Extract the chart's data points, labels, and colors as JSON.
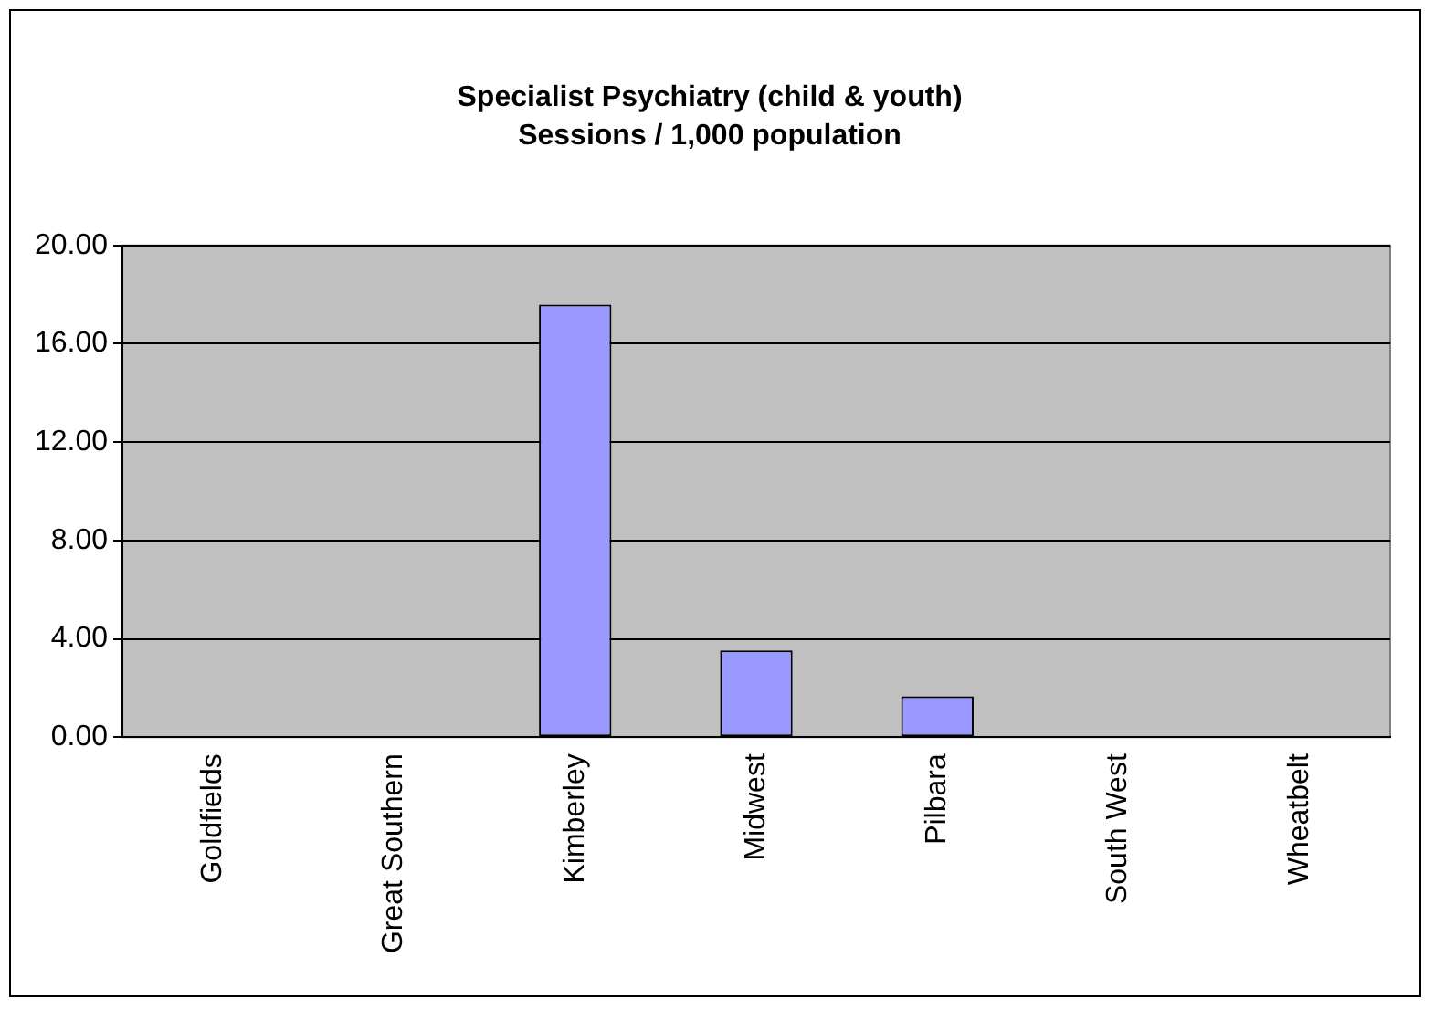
{
  "chart_data": {
    "type": "bar",
    "title": "Specialist Psychiatry (child & youth)",
    "subtitle": "Sessions / 1,000 population",
    "categories": [
      "Goldfields",
      "Great Southern",
      "Kimberley",
      "Midwest",
      "Pilbara",
      "South West",
      "Wheatbelt"
    ],
    "values": [
      0,
      0,
      17.6,
      3.53,
      1.66,
      0,
      0
    ],
    "color": "#9999ff",
    "ylim": [
      0,
      20
    ],
    "yticks": [
      {
        "value": 0,
        "label": "0.00"
      },
      {
        "value": 4,
        "label": "4.00"
      },
      {
        "value": 8,
        "label": "8.00"
      },
      {
        "value": 12,
        "label": "12.00"
      },
      {
        "value": 16,
        "label": "16.00"
      },
      {
        "value": 20,
        "label": "20.00"
      }
    ],
    "grid": "y",
    "legend": false
  }
}
